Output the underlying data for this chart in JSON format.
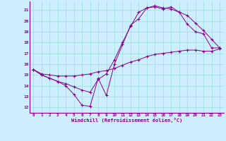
{
  "xlabel": "Windchill (Refroidissement éolien,°C)",
  "bg_color": "#cceeff",
  "grid_color": "#99dddd",
  "line_color": "#880088",
  "xlim": [
    -0.5,
    23.5
  ],
  "ylim": [
    11.5,
    21.8
  ],
  "yticks": [
    12,
    13,
    14,
    15,
    16,
    17,
    18,
    19,
    20,
    21
  ],
  "xticks": [
    0,
    1,
    2,
    3,
    4,
    5,
    6,
    7,
    8,
    9,
    10,
    11,
    12,
    13,
    14,
    15,
    16,
    17,
    18,
    19,
    20,
    21,
    22,
    23
  ],
  "series1": [
    15.5,
    15.0,
    14.7,
    14.4,
    14.0,
    13.2,
    12.2,
    12.1,
    14.7,
    13.1,
    16.0,
    17.8,
    19.6,
    20.2,
    21.2,
    21.3,
    21.1,
    21.3,
    20.8,
    19.7,
    19.0,
    18.8,
    17.5,
    17.5
  ],
  "series2": [
    15.5,
    15.1,
    15.0,
    14.9,
    14.9,
    14.9,
    15.0,
    15.1,
    15.3,
    15.4,
    15.6,
    15.9,
    16.2,
    16.4,
    16.7,
    16.9,
    17.0,
    17.1,
    17.2,
    17.3,
    17.3,
    17.2,
    17.2,
    17.4
  ],
  "series3": [
    15.5,
    15.0,
    14.7,
    14.4,
    14.2,
    13.9,
    13.6,
    13.4,
    14.6,
    15.1,
    16.4,
    18.0,
    19.5,
    20.8,
    21.2,
    21.4,
    21.2,
    21.1,
    20.8,
    20.5,
    19.8,
    19.1,
    18.3,
    17.5
  ]
}
